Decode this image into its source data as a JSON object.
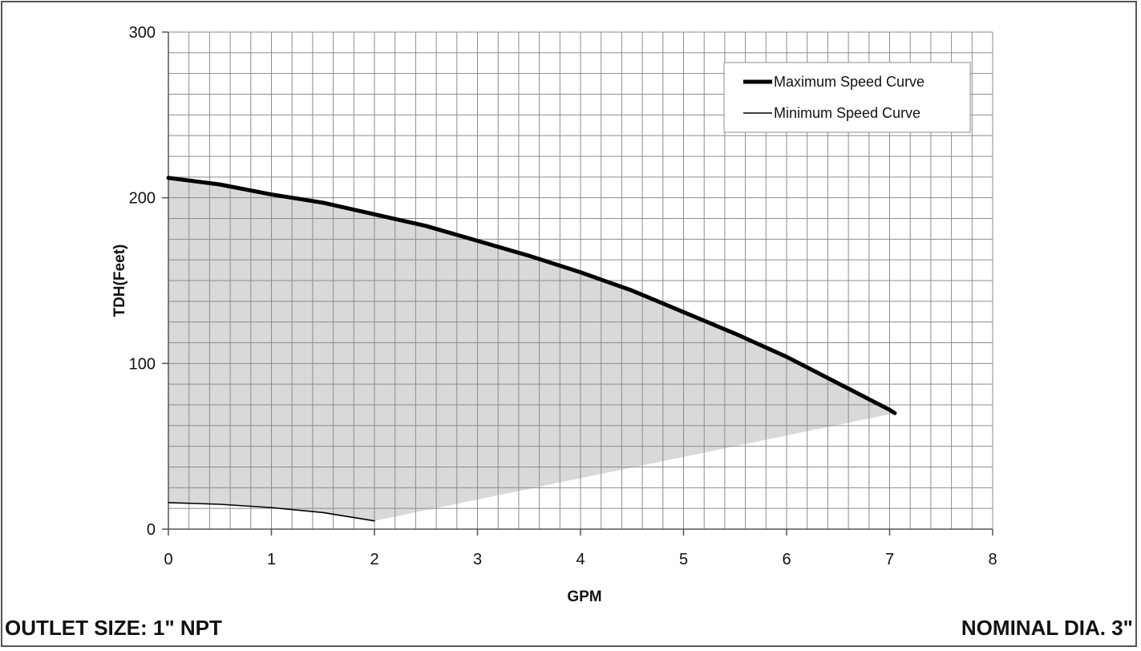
{
  "chart_data": {
    "type": "line",
    "xlabel": "GPM",
    "ylabel": "TDH(Feet)",
    "xlim": [
      0,
      8
    ],
    "ylim": [
      0,
      300
    ],
    "x_ticks": [
      0,
      1,
      2,
      3,
      4,
      5,
      6,
      7,
      8
    ],
    "y_ticks": [
      0,
      100,
      200,
      300
    ],
    "minor_grid_x_step": 0.2,
    "minor_grid_y_step": 12.5,
    "grid": true,
    "legend_position": "top-right",
    "series": [
      {
        "name": "Maximum Speed Curve",
        "style": "thick",
        "color": "#000000",
        "x": [
          0,
          0.5,
          1,
          1.5,
          2,
          2.5,
          3,
          3.5,
          4,
          4.5,
          5,
          5.5,
          6,
          6.5,
          7,
          7.05
        ],
        "y": [
          212,
          208,
          202,
          197,
          190,
          183,
          174,
          165,
          155,
          144,
          131,
          118,
          104,
          88,
          72,
          70
        ]
      },
      {
        "name": "Minimum Speed Curve",
        "style": "thin",
        "color": "#000000",
        "x": [
          0,
          0.5,
          1,
          1.5,
          2
        ],
        "y": [
          16,
          15,
          13,
          10,
          5
        ]
      }
    ],
    "operating_region_fill": "#d9d9d9"
  },
  "footer": {
    "left": "OUTLET SIZE: 1\" NPT",
    "right": "NOMINAL DIA. 3\""
  }
}
